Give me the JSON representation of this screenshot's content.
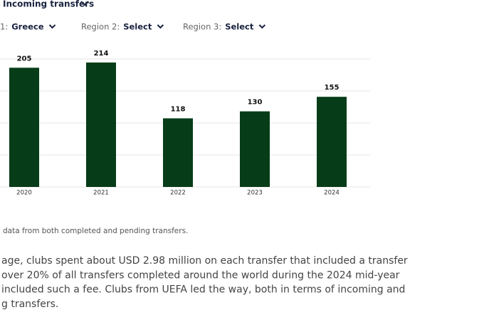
{
  "header": {
    "dropdown": "Incoming transfers"
  },
  "filters": [
    {
      "label": "1:",
      "value": "Greece"
    },
    {
      "label": "Region 2:",
      "value": "Select"
    },
    {
      "label": "Region 3:",
      "value": "Select"
    }
  ],
  "chart_data": {
    "type": "bar",
    "categories": [
      "2020",
      "2021",
      "2022",
      "2023",
      "2024"
    ],
    "values": [
      205,
      214,
      118,
      130,
      155
    ],
    "color": "#063d18",
    "ylim": [
      0,
      220
    ],
    "yticks": [
      0,
      55,
      110,
      165,
      220
    ],
    "grid": true
  },
  "footnote": "data from both completed and pending transfers.",
  "paragraph": [
    "age, clubs spent about USD 2.98 million on each transfer that included a transfer",
    "over 20% of all transfers completed around the world during the 2024 mid-year",
    "included such a fee. Clubs from UEFA led the way, both in terms of incoming and",
    "g transfers."
  ]
}
